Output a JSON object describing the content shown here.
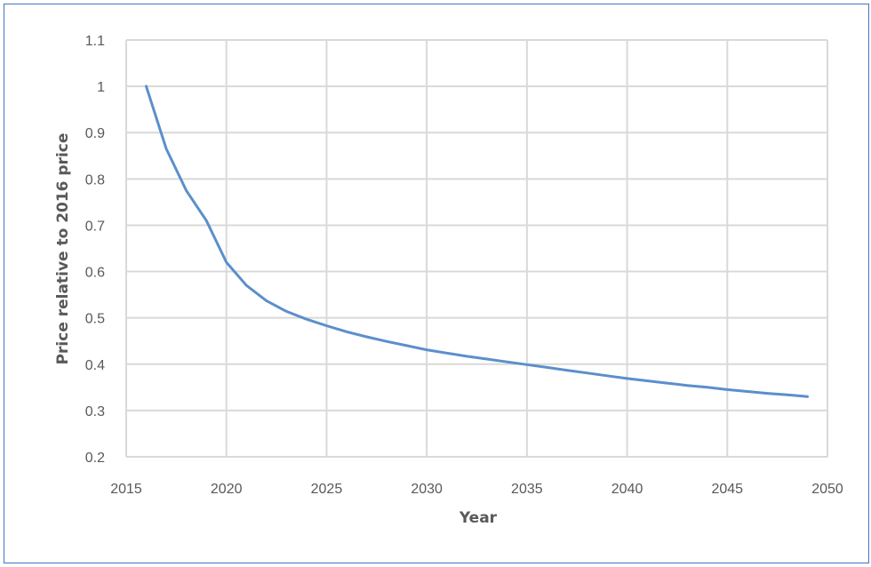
{
  "chart_data": {
    "type": "line",
    "title": "",
    "xlabel": "Year",
    "ylabel": "Price relative to 2016 price",
    "xlim": [
      2015,
      2050
    ],
    "ylim": [
      0.2,
      1.1
    ],
    "x_ticks": [
      2015,
      2020,
      2025,
      2030,
      2035,
      2040,
      2045,
      2050
    ],
    "y_ticks": [
      0.2,
      0.3,
      0.4,
      0.5,
      0.6,
      0.7,
      0.8,
      0.9,
      1,
      1.1
    ],
    "grid": true,
    "legend": "none",
    "series": [
      {
        "color": "#5b8fcb",
        "x": [
          2016,
          2017,
          2018,
          2019,
          2020,
          2021,
          2022,
          2023,
          2024,
          2025,
          2026,
          2027,
          2028,
          2029,
          2030,
          2031,
          2032,
          2033,
          2034,
          2035,
          2036,
          2037,
          2038,
          2039,
          2040,
          2041,
          2042,
          2043,
          2044,
          2045,
          2046,
          2047,
          2048,
          2049
        ],
        "y": [
          1.0,
          0.865,
          0.775,
          0.71,
          0.62,
          0.57,
          0.537,
          0.514,
          0.497,
          0.483,
          0.47,
          0.459,
          0.449,
          0.44,
          0.431,
          0.424,
          0.417,
          0.411,
          0.405,
          0.399,
          0.393,
          0.387,
          0.381,
          0.375,
          0.369,
          0.364,
          0.359,
          0.354,
          0.35,
          0.345,
          0.341,
          0.337,
          0.334,
          0.33
        ]
      }
    ]
  }
}
